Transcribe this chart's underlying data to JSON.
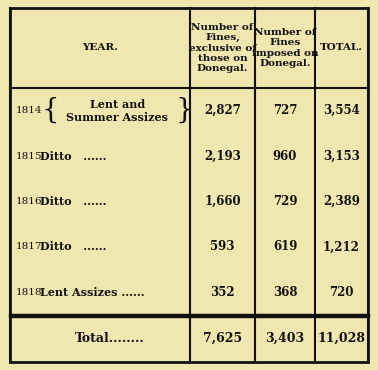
{
  "bg_color": "#f0e6b0",
  "border_color": "#111111",
  "header_row": [
    "YEAR.",
    "Number of\nFines,\nexclusive of\nthose on\nDonegal.",
    "Number of\nFines\nimposed on\nDonegal.",
    "TOTAL."
  ],
  "rows": [
    {
      "year": "1814",
      "assizes": "Lent and\nSummer Assizes",
      "col1": "2,827",
      "col2": "727",
      "col3": "3,554",
      "has_braces": true
    },
    {
      "year": "1815",
      "assizes": "Ditto   ......",
      "col1": "2,193",
      "col2": "960",
      "col3": "3,153",
      "has_braces": false
    },
    {
      "year": "1816",
      "assizes": "Ditto   ......",
      "col1": "1,660",
      "col2": "729",
      "col3": "2,389",
      "has_braces": false
    },
    {
      "year": "1817",
      "assizes": "Ditto   ......",
      "col1": "593",
      "col2": "619",
      "col3": "1,212",
      "has_braces": false
    },
    {
      "year": "1818",
      "assizes": "Lent Assizes ......",
      "col1": "352",
      "col2": "368",
      "col3": "720",
      "has_braces": false
    }
  ],
  "total_row": {
    "label": "Total........",
    "col1": "7,625",
    "col2": "3,403",
    "col3": "11,028"
  },
  "text_color": "#111111",
  "header_fontsize": 7.5,
  "body_fontsize": 8.5,
  "year_fontsize": 7.5,
  "total_fontsize": 9.0
}
